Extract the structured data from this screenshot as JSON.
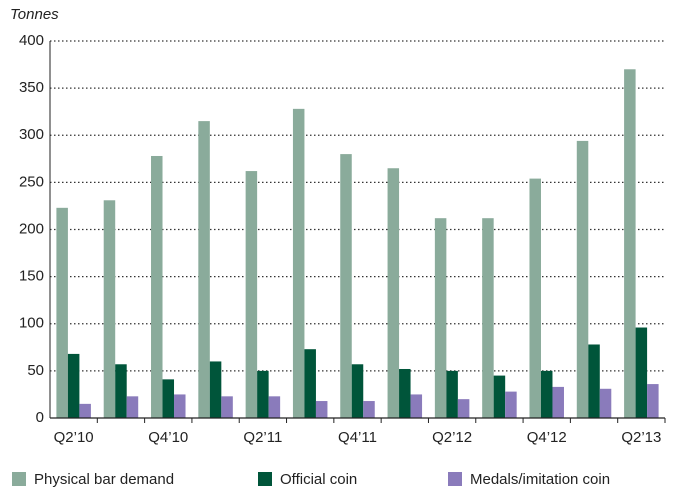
{
  "chart_data": {
    "type": "bar",
    "y_label": "Tonnes",
    "categories": [
      "Q2’10",
      null,
      "Q4’10",
      null,
      "Q2’11",
      null,
      "Q4’11",
      null,
      "Q2’12",
      null,
      "Q4’12",
      null,
      "Q2’13"
    ],
    "series": [
      {
        "name": "Physical bar demand",
        "color": "#8aab9b",
        "values": [
          223,
          231,
          278,
          315,
          262,
          328,
          280,
          265,
          212,
          212,
          254,
          294,
          370
        ]
      },
      {
        "name": "Official coin",
        "color": "#00553a",
        "values": [
          68,
          57,
          41,
          60,
          50,
          73,
          57,
          52,
          50,
          45,
          50,
          78,
          96
        ]
      },
      {
        "name": "Medals/imitation coin",
        "color": "#8a7bbb",
        "values": [
          15,
          23,
          25,
          23,
          23,
          18,
          18,
          25,
          20,
          28,
          33,
          31,
          36
        ]
      }
    ],
    "ylim": [
      0,
      400
    ],
    "yticks": [
      0,
      50,
      100,
      150,
      200,
      250,
      300,
      350,
      400
    ],
    "grid": true,
    "legend": "bottom"
  }
}
